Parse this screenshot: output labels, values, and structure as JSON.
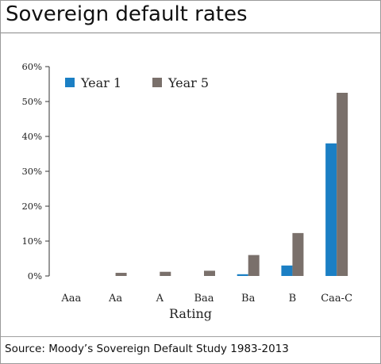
{
  "title": "Sovereign default rates",
  "source": "Source: Moody’s Sovereign Default Study 1983-2013",
  "chart_data": {
    "type": "bar",
    "xlabel": "Rating",
    "ylabel": "",
    "ylim": [
      0,
      60
    ],
    "yticks": [
      "0%",
      "10%",
      "20%",
      "30%",
      "40%",
      "50%",
      "60%"
    ],
    "ytick_values": [
      0,
      10,
      20,
      30,
      40,
      50,
      60
    ],
    "categories": [
      "Aaa",
      "Aa",
      "A",
      "Baa",
      "Ba",
      "B",
      "Caa-C"
    ],
    "series": [
      {
        "name": "Year 1",
        "color": "#1b7fc4",
        "values": [
          0,
          0,
          0,
          0,
          0.5,
          3.0,
          38.0
        ]
      },
      {
        "name": "Year 5",
        "color": "#7a706b",
        "values": [
          0,
          0.9,
          1.2,
          1.5,
          6.0,
          12.3,
          52.5
        ]
      }
    ],
    "legend_position": "top-left",
    "grid": false
  }
}
